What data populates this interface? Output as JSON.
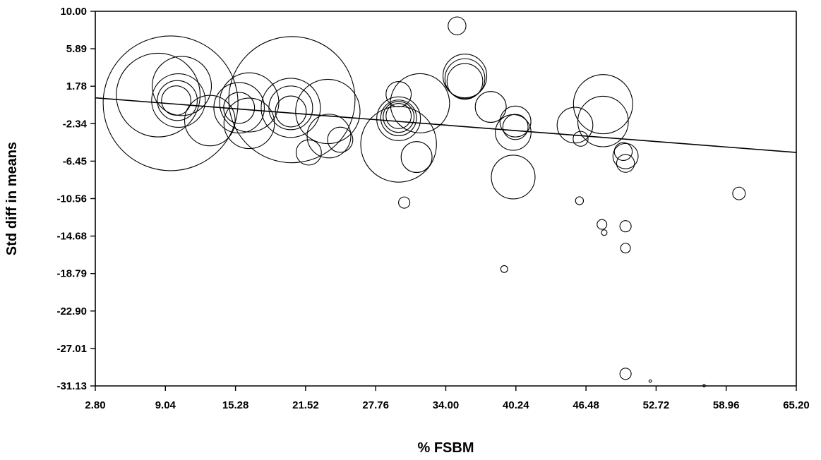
{
  "chart_data": {
    "type": "scatter",
    "title": "",
    "xlabel": "% FSBM",
    "ylabel": "Std diff in means",
    "xlim": [
      2.8,
      65.2
    ],
    "ylim": [
      -31.13,
      10.0
    ],
    "x_ticks": [
      "2.80",
      "9.04",
      "15.28",
      "21.52",
      "27.76",
      "34.00",
      "40.24",
      "46.48",
      "52.72",
      "58.96",
      "65.20"
    ],
    "y_ticks": [
      "10.00",
      "5.89",
      "1.78",
      "-2.34",
      "-6.45",
      "-10.56",
      "-14.68",
      "-18.79",
      "-22.90",
      "-27.01",
      "-31.13"
    ],
    "grid": false,
    "regression_line": {
      "x": [
        2.8,
        65.2
      ],
      "y": [
        0.5,
        -5.5
      ]
    },
    "points": [
      {
        "x": 9.5,
        "y": -0.1,
        "weight": 5.7
      },
      {
        "x": 8.4,
        "y": 0.8,
        "weight": 2.2
      },
      {
        "x": 10.5,
        "y": 1.8,
        "weight": 1.1
      },
      {
        "x": 10.2,
        "y": 0.2,
        "weight": 0.9
      },
      {
        "x": 10.1,
        "y": 0.2,
        "weight": 0.5
      },
      {
        "x": 10.0,
        "y": 0.2,
        "weight": 0.27
      },
      {
        "x": 13.0,
        "y": -2.0,
        "weight": 0.8
      },
      {
        "x": 15.6,
        "y": -0.6,
        "weight": 0.8
      },
      {
        "x": 16.5,
        "y": 0.0,
        "weight": 1.1
      },
      {
        "x": 16.5,
        "y": -2.3,
        "weight": 0.8
      },
      {
        "x": 15.6,
        "y": -0.6,
        "weight": 0.3
      },
      {
        "x": 20.3,
        "y": 0.3,
        "weight": 5.0
      },
      {
        "x": 20.2,
        "y": -0.6,
        "weight": 1.1
      },
      {
        "x": 20.2,
        "y": -0.6,
        "weight": 0.6
      },
      {
        "x": 20.2,
        "y": -1.0,
        "weight": 0.3
      },
      {
        "x": 23.5,
        "y": -1.0,
        "weight": 1.3
      },
      {
        "x": 23.6,
        "y": -3.7,
        "weight": 0.6
      },
      {
        "x": 24.6,
        "y": -4.1,
        "weight": 0.2
      },
      {
        "x": 21.8,
        "y": -5.5,
        "weight": 0.2
      },
      {
        "x": 29.8,
        "y": 0.9,
        "weight": 0.2
      },
      {
        "x": 31.7,
        "y": -0.1,
        "weight": 1.1
      },
      {
        "x": 29.8,
        "y": -4.6,
        "weight": 1.8
      },
      {
        "x": 29.8,
        "y": -1.8,
        "weight": 0.6
      },
      {
        "x": 29.8,
        "y": -1.7,
        "weight": 0.4
      },
      {
        "x": 29.8,
        "y": -1.6,
        "weight": 0.3
      },
      {
        "x": 29.8,
        "y": -1.5,
        "weight": 0.2
      },
      {
        "x": 31.4,
        "y": -6.0,
        "weight": 0.3
      },
      {
        "x": 30.3,
        "y": -11.0,
        "weight": 0.04
      },
      {
        "x": 35.0,
        "y": 8.4,
        "weight": 0.1
      },
      {
        "x": 35.7,
        "y": 2.9,
        "weight": 0.6
      },
      {
        "x": 35.7,
        "y": 2.6,
        "weight": 0.5
      },
      {
        "x": 35.7,
        "y": 2.3,
        "weight": 0.4
      },
      {
        "x": 38.0,
        "y": -0.5,
        "weight": 0.3
      },
      {
        "x": 40.2,
        "y": -2.1,
        "weight": 0.3
      },
      {
        "x": 40.0,
        "y": -3.3,
        "weight": 0.4
      },
      {
        "x": 40.2,
        "y": -2.7,
        "weight": 0.2
      },
      {
        "x": 40.0,
        "y": -8.2,
        "weight": 0.6
      },
      {
        "x": 39.2,
        "y": -18.3,
        "weight": 0.015
      },
      {
        "x": 45.5,
        "y": -2.5,
        "weight": 0.4
      },
      {
        "x": 46.0,
        "y": -4.0,
        "weight": 0.07
      },
      {
        "x": 45.9,
        "y": -10.8,
        "weight": 0.02
      },
      {
        "x": 48.0,
        "y": -0.2,
        "weight": 1.1
      },
      {
        "x": 48.0,
        "y": -2.1,
        "weight": 0.8
      },
      {
        "x": 47.9,
        "y": -13.4,
        "weight": 0.03
      },
      {
        "x": 48.1,
        "y": -14.3,
        "weight": 0.01
      },
      {
        "x": 50.0,
        "y": -5.9,
        "weight": 0.2
      },
      {
        "x": 49.8,
        "y": -5.4,
        "weight": 0.1
      },
      {
        "x": 50.0,
        "y": -6.7,
        "weight": 0.1
      },
      {
        "x": 50.0,
        "y": -13.6,
        "weight": 0.04
      },
      {
        "x": 50.0,
        "y": -16.0,
        "weight": 0.03
      },
      {
        "x": 50.0,
        "y": -29.8,
        "weight": 0.04
      },
      {
        "x": 52.2,
        "y": -30.6,
        "weight": 0.002
      },
      {
        "x": 57.0,
        "y": -31.1,
        "weight": 0.002
      },
      {
        "x": 60.1,
        "y": -10.0,
        "weight": 0.05
      }
    ]
  }
}
